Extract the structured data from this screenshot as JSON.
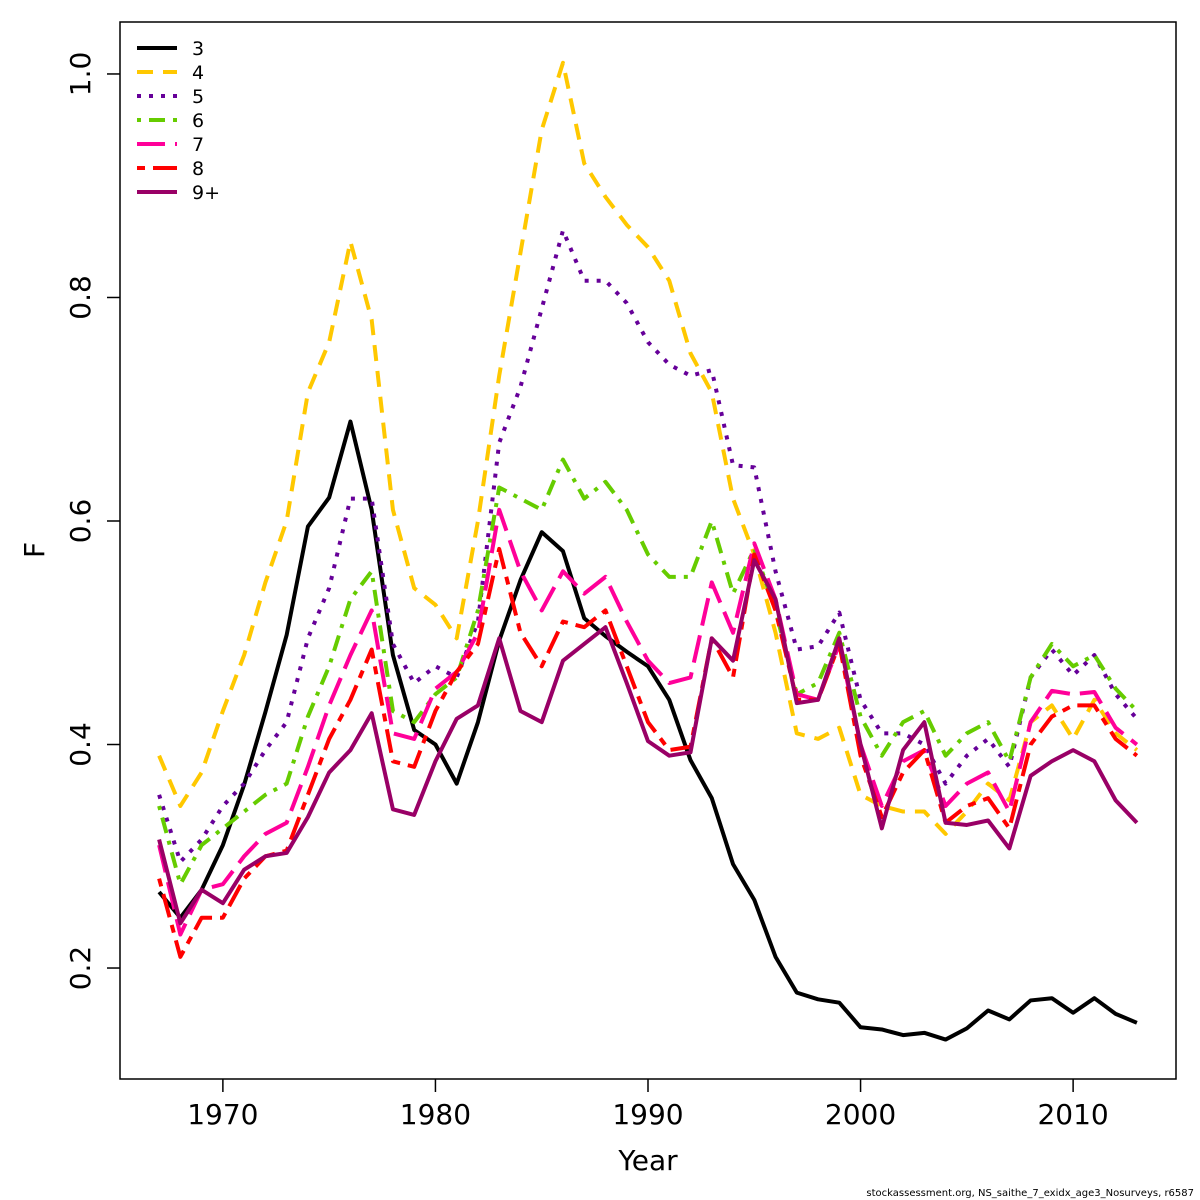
{
  "chart_data": {
    "type": "line",
    "xlabel": "Year",
    "ylabel": "F",
    "footnote": "stockassessment.org, NS_saithe_7_exidx_age3_Nosurveys, r6587",
    "x": [
      1967,
      1968,
      1969,
      1970,
      1971,
      1972,
      1973,
      1974,
      1975,
      1976,
      1977,
      1978,
      1979,
      1980,
      1981,
      1982,
      1983,
      1984,
      1985,
      1986,
      1987,
      1988,
      1989,
      1990,
      1991,
      1992,
      1993,
      1994,
      1995,
      1996,
      1997,
      1998,
      1999,
      2000,
      2001,
      2002,
      2003,
      2004,
      2005,
      2006,
      2007,
      2008,
      2009,
      2010,
      2011,
      2012,
      2013
    ],
    "xlim": [
      1965.16,
      2014.84
    ],
    "xticks": [
      1970,
      1980,
      1990,
      2000,
      2010
    ],
    "ylim": [
      0.1007,
      1.0465
    ],
    "yticks": [
      0.2,
      0.4,
      0.6,
      0.8,
      {
        "value": 1,
        "label": "1.0"
      }
    ],
    "legend": "top-left",
    "series": [
      {
        "name": "3",
        "color": "#000000",
        "dash": "solid",
        "values": [
          0.268,
          0.245,
          0.27,
          0.31,
          0.364,
          0.429,
          0.498,
          0.595,
          0.621,
          0.689,
          0.61,
          0.48,
          0.413,
          0.4,
          0.365,
          0.42,
          0.493,
          0.547,
          0.59,
          0.573,
          0.513,
          0.497,
          0.483,
          0.47,
          0.44,
          0.386,
          0.352,
          0.293,
          0.261,
          0.21,
          0.178,
          0.172,
          0.169,
          0.147,
          0.145,
          0.14,
          0.142,
          0.136,
          0.146,
          0.162,
          0.154,
          0.171,
          0.173,
          0.16,
          0.173,
          0.159,
          0.151
        ]
      },
      {
        "name": "4",
        "color": "#FFC800",
        "dash": "dashed",
        "values": [
          0.39,
          0.345,
          0.375,
          0.43,
          0.48,
          0.545,
          0.6,
          0.715,
          0.76,
          0.85,
          0.78,
          0.61,
          0.54,
          0.525,
          0.495,
          0.6,
          0.73,
          0.84,
          0.95,
          1.01,
          0.92,
          0.89,
          0.865,
          0.845,
          0.815,
          0.75,
          0.715,
          0.62,
          0.57,
          0.5,
          0.41,
          0.405,
          0.415,
          0.355,
          0.345,
          0.34,
          0.34,
          0.32,
          0.34,
          0.365,
          0.35,
          0.42,
          0.435,
          0.405,
          0.44,
          0.41,
          0.395
        ]
      },
      {
        "name": "5",
        "color": "#660099",
        "dash": "dotted",
        "values": [
          0.355,
          0.295,
          0.315,
          0.345,
          0.365,
          0.395,
          0.42,
          0.495,
          0.54,
          0.62,
          0.62,
          0.49,
          0.455,
          0.47,
          0.46,
          0.51,
          0.67,
          0.72,
          0.79,
          0.86,
          0.815,
          0.815,
          0.795,
          0.76,
          0.74,
          0.73,
          0.735,
          0.65,
          0.648,
          0.555,
          0.485,
          0.488,
          0.518,
          0.44,
          0.41,
          0.41,
          0.4,
          0.365,
          0.39,
          0.405,
          0.38,
          0.46,
          0.485,
          0.462,
          0.48,
          0.445,
          0.423
        ]
      },
      {
        "name": "6",
        "color": "#66CC00",
        "dash": "dotdash",
        "values": [
          0.345,
          0.275,
          0.31,
          0.325,
          0.34,
          0.355,
          0.365,
          0.425,
          0.47,
          0.53,
          0.555,
          0.43,
          0.42,
          0.445,
          0.46,
          0.52,
          0.63,
          0.62,
          0.61,
          0.655,
          0.62,
          0.635,
          0.61,
          0.57,
          0.55,
          0.55,
          0.6,
          0.535,
          0.575,
          0.52,
          0.445,
          0.455,
          0.5,
          0.425,
          0.39,
          0.42,
          0.43,
          0.39,
          0.41,
          0.42,
          0.385,
          0.46,
          0.49,
          0.47,
          0.48,
          0.45,
          0.43
        ]
      },
      {
        "name": "7",
        "color": "#FF0099",
        "dash": "longdash",
        "values": [
          0.31,
          0.23,
          0.27,
          0.275,
          0.3,
          0.32,
          0.33,
          0.38,
          0.435,
          0.48,
          0.52,
          0.41,
          0.405,
          0.45,
          0.465,
          0.5,
          0.61,
          0.555,
          0.52,
          0.555,
          0.535,
          0.55,
          0.51,
          0.475,
          0.455,
          0.46,
          0.545,
          0.5,
          0.58,
          0.53,
          0.445,
          0.44,
          0.49,
          0.4,
          0.345,
          0.385,
          0.395,
          0.345,
          0.365,
          0.375,
          0.34,
          0.42,
          0.448,
          0.445,
          0.447,
          0.415,
          0.4
        ]
      },
      {
        "name": "8",
        "color": "#FF0000",
        "dash": "twodash",
        "values": [
          0.28,
          0.21,
          0.245,
          0.245,
          0.28,
          0.3,
          0.305,
          0.355,
          0.405,
          0.44,
          0.485,
          0.385,
          0.38,
          0.43,
          0.465,
          0.49,
          0.575,
          0.5,
          0.47,
          0.51,
          0.505,
          0.52,
          0.47,
          0.42,
          0.395,
          0.398,
          0.495,
          0.46,
          0.57,
          0.52,
          0.44,
          0.44,
          0.49,
          0.39,
          0.335,
          0.375,
          0.395,
          0.33,
          0.345,
          0.352,
          0.325,
          0.4,
          0.425,
          0.435,
          0.435,
          0.405,
          0.39
        ]
      },
      {
        "name": "9+",
        "color": "#990066",
        "dash": "solid",
        "values": [
          0.315,
          0.24,
          0.27,
          0.258,
          0.288,
          0.3,
          0.303,
          0.335,
          0.375,
          0.395,
          0.428,
          0.342,
          0.337,
          0.385,
          0.423,
          0.435,
          0.495,
          0.43,
          0.42,
          0.475,
          0.49,
          0.505,
          0.455,
          0.403,
          0.39,
          0.393,
          0.495,
          0.475,
          0.565,
          0.53,
          0.437,
          0.44,
          0.495,
          0.4,
          0.325,
          0.395,
          0.42,
          0.33,
          0.328,
          0.332,
          0.307,
          0.372,
          0.385,
          0.395,
          0.385,
          0.35,
          0.33
        ]
      }
    ]
  }
}
